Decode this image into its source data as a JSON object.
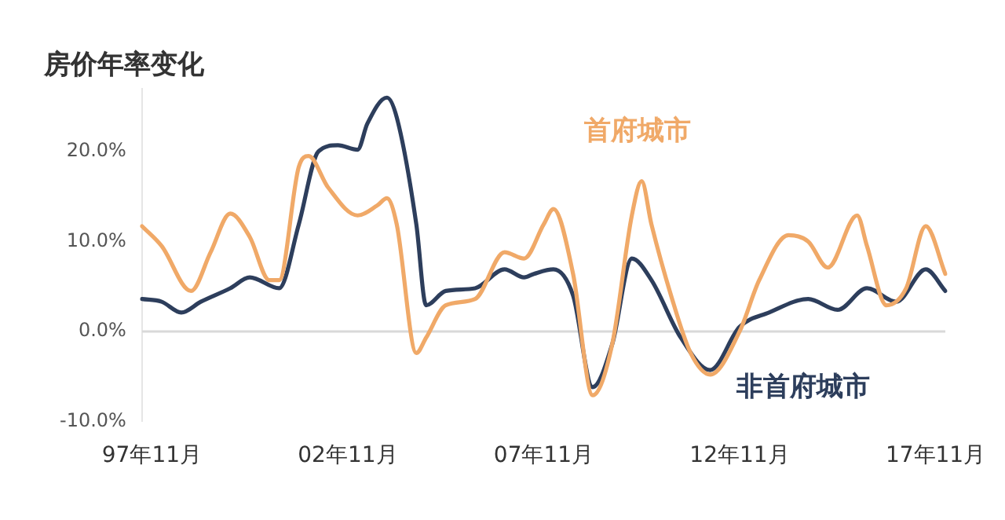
{
  "chart_data": {
    "type": "line",
    "title": "房价年率变化",
    "categories": [
      null,
      "97年11月",
      null,
      null,
      null,
      null,
      null,
      null,
      null,
      null,
      null,
      null,
      null,
      null,
      null,
      null,
      null,
      null,
      null,
      null,
      null,
      "02年11月",
      null,
      null,
      null,
      null,
      null,
      null,
      null,
      null,
      null,
      null,
      null,
      null,
      null,
      null,
      null,
      null,
      null,
      null,
      null,
      "07年11月",
      null,
      null,
      null,
      null,
      null,
      null,
      null,
      null,
      null,
      null,
      null,
      null,
      null,
      null,
      null,
      null,
      null,
      null,
      null,
      "12年11月",
      null,
      null,
      null,
      null,
      null,
      null,
      null,
      null,
      null,
      null,
      null,
      null,
      null,
      null,
      null,
      null,
      null,
      null,
      null,
      "17年11月",
      null
    ],
    "ylim": [
      -10,
      27
    ],
    "yticks": [
      {
        "value": -10,
        "label": "-10.0%"
      },
      {
        "value": 0,
        "label": "0.0%"
      },
      {
        "value": 10,
        "label": "10.0%"
      },
      {
        "value": 20,
        "label": "20.0%"
      }
    ],
    "grid": false,
    "legend": false,
    "marker": "none",
    "line_style": "solid",
    "ref_lines": [
      {
        "axis": "y",
        "value": 0,
        "color": "#d9d9d9"
      }
    ],
    "series": [
      {
        "name": "首府城市",
        "color": "#f0a968",
        "values": [
          11.7,
          null,
          9.5,
          null,
          null,
          4.5,
          null,
          8.8,
          null,
          13.1,
          null,
          10.5,
          null,
          5.7,
          5.7,
          null,
          18.3,
          19.5,
          null,
          16,
          null,
          null,
          12.9,
          null,
          14,
          14.8,
          11.9,
          null,
          -2.4,
          -0.7,
          null,
          2.9,
          null,
          null,
          3.6,
          null,
          null,
          8.8,
          null,
          8.1,
          null,
          11.9,
          13.6,
          null,
          6.4,
          null,
          -7.1,
          null,
          -1.4,
          null,
          12.9,
          16.7,
          11.9,
          null,
          4,
          null,
          -2.4,
          null,
          -4.8,
          null,
          null,
          0,
          null,
          5.7,
          null,
          null,
          10.7,
          null,
          10,
          null,
          7.1,
          null,
          null,
          12.9,
          9.5,
          null,
          2.9,
          null,
          4.8,
          null,
          11.7,
          null,
          6.4
        ]
      },
      {
        "name": "非首府城市",
        "color": "#2d3e5c",
        "values": [
          3.6,
          null,
          3.3,
          null,
          2.1,
          null,
          3.3,
          null,
          null,
          4.8,
          null,
          6,
          null,
          null,
          4.8,
          null,
          11.9,
          null,
          20,
          null,
          20.7,
          null,
          20.2,
          23.1,
          null,
          26,
          23.8,
          null,
          11.9,
          2.9,
          null,
          4.5,
          null,
          null,
          4.8,
          null,
          null,
          6.9,
          null,
          6,
          6.4,
          null,
          6.9,
          null,
          4,
          null,
          -6.2,
          null,
          -1.4,
          null,
          8.1,
          null,
          5.7,
          null,
          null,
          -0.7,
          null,
          null,
          -4.3,
          null,
          null,
          0.5,
          null,
          null,
          2.1,
          null,
          null,
          null,
          3.6,
          null,
          null,
          2.4,
          null,
          null,
          4.8,
          null,
          null,
          3.3,
          null,
          null,
          6.9,
          null,
          4.5
        ]
      }
    ]
  }
}
